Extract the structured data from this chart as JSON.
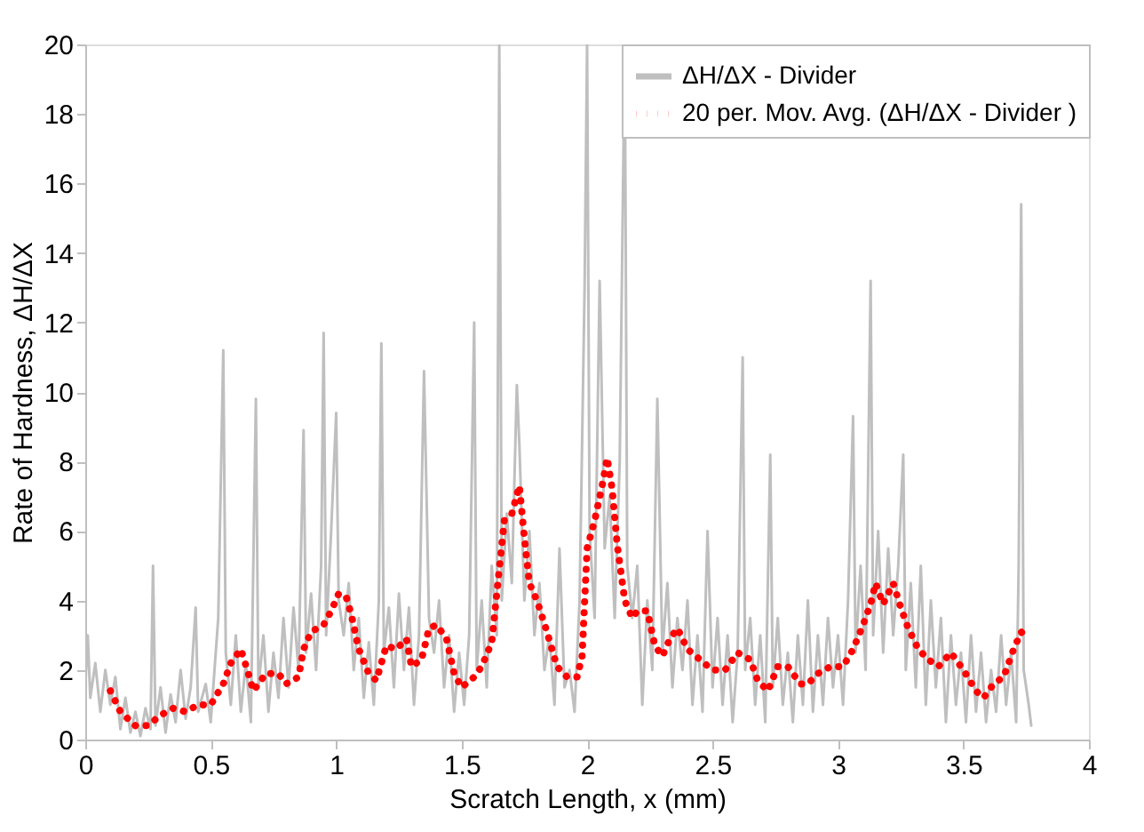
{
  "chart_data": {
    "type": "line",
    "xlabel": "Scratch Length, x (mm)",
    "ylabel": "Rate of Hardness, ΔH/ΔX",
    "xlim": [
      0,
      4
    ],
    "xticks": [
      0,
      0.5,
      1,
      1.5,
      2,
      2.5,
      3,
      3.5,
      4
    ],
    "ylim": [
      0,
      20
    ],
    "yticks": [
      0,
      2,
      4,
      6,
      8,
      10,
      12,
      14,
      16,
      18,
      20
    ],
    "grid": false,
    "legend": "top right",
    "marker": "none",
    "series": [
      {
        "name": "ΔH/ΔX - Divider",
        "color": "#bfbfbf",
        "line_style": "solid",
        "x": [
          0,
          0.01,
          0.02,
          0.04,
          0.06,
          0.08,
          0.1,
          0.12,
          0.14,
          0.16,
          0.18,
          0.2,
          0.22,
          0.24,
          0.26,
          0.27,
          0.28,
          0.3,
          0.32,
          0.34,
          0.36,
          0.38,
          0.4,
          0.42,
          0.44,
          0.45,
          0.48,
          0.5,
          0.53,
          0.55,
          0.56,
          0.58,
          0.6,
          0.62,
          0.64,
          0.66,
          0.68,
          0.69,
          0.71,
          0.73,
          0.75,
          0.77,
          0.79,
          0.81,
          0.83,
          0.85,
          0.87,
          0.88,
          0.9,
          0.92,
          0.94,
          0.95,
          0.96,
          0.98,
          1.0,
          1.01,
          1.03,
          1.05,
          1.07,
          1.09,
          1.11,
          1.13,
          1.15,
          1.17,
          1.18,
          1.19,
          1.21,
          1.23,
          1.25,
          1.27,
          1.29,
          1.31,
          1.33,
          1.35,
          1.37,
          1.39,
          1.41,
          1.43,
          1.45,
          1.47,
          1.49,
          1.51,
          1.53,
          1.55,
          1.56,
          1.58,
          1.6,
          1.62,
          1.64,
          1.65,
          1.66,
          1.68,
          1.7,
          1.72,
          1.73,
          1.75,
          1.77,
          1.79,
          1.81,
          1.83,
          1.85,
          1.87,
          1.89,
          1.91,
          1.93,
          1.95,
          1.97,
          1.99,
          2.0,
          2.01,
          2.03,
          2.05,
          2.07,
          2.09,
          2.11,
          2.13,
          2.15,
          2.16,
          2.18,
          2.2,
          2.22,
          2.24,
          2.26,
          2.28,
          2.3,
          2.32,
          2.34,
          2.36,
          2.38,
          2.4,
          2.42,
          2.44,
          2.46,
          2.48,
          2.5,
          2.52,
          2.54,
          2.56,
          2.58,
          2.6,
          2.62,
          2.63,
          2.65,
          2.67,
          2.69,
          2.71,
          2.73,
          2.74,
          2.76,
          2.78,
          2.8,
          2.82,
          2.84,
          2.86,
          2.88,
          2.9,
          2.92,
          2.94,
          2.96,
          2.98,
          3.0,
          3.02,
          3.04,
          3.06,
          3.07,
          3.09,
          3.11,
          3.13,
          3.14,
          3.16,
          3.18,
          3.2,
          3.22,
          3.24,
          3.26,
          3.27,
          3.29,
          3.31,
          3.33,
          3.35,
          3.37,
          3.39,
          3.41,
          3.43,
          3.45,
          3.47,
          3.49,
          3.51,
          3.53,
          3.55,
          3.57,
          3.59,
          3.61,
          3.63,
          3.65,
          3.67,
          3.69,
          3.71,
          3.72,
          3.73,
          3.74,
          3.76,
          3.77
        ],
        "values": [
          1.5,
          3.0,
          1.2,
          2.2,
          0.8,
          2.0,
          1.0,
          1.8,
          0.3,
          1.2,
          0.2,
          0.8,
          0.1,
          0.9,
          0.3,
          5.0,
          0.4,
          1.5,
          0.2,
          1.3,
          0.5,
          2.0,
          0.6,
          1.5,
          3.8,
          0.8,
          1.6,
          0.5,
          3.5,
          11.2,
          2.5,
          1.0,
          3.0,
          0.8,
          2.2,
          0.5,
          9.8,
          1.5,
          3.0,
          0.8,
          2.5,
          1.2,
          3.5,
          1.5,
          3.8,
          2.0,
          8.9,
          2.5,
          4.2,
          2.0,
          5.0,
          11.7,
          3.0,
          6.0,
          9.4,
          4.0,
          3.0,
          4.5,
          2.0,
          3.5,
          1.2,
          2.8,
          1.0,
          4.0,
          11.4,
          2.5,
          3.8,
          1.5,
          4.2,
          2.0,
          3.8,
          1.0,
          3.0,
          10.6,
          3.5,
          2.5,
          4.0,
          1.5,
          3.0,
          0.8,
          2.5,
          1.0,
          3.0,
          12.0,
          2.0,
          4.0,
          1.5,
          5.0,
          3.0,
          20,
          4.0,
          6.5,
          4.5,
          10.2,
          8.5,
          4.0,
          6.0,
          3.0,
          4.5,
          2.0,
          3.0,
          1.0,
          5.5,
          1.5,
          2.0,
          0.8,
          4.0,
          13.0,
          20,
          6.0,
          3.5,
          13.2,
          5.5,
          7.0,
          3.5,
          8.0,
          20,
          5.0,
          3.5,
          5.0,
          1.0,
          4.0,
          2.0,
          9.8,
          2.5,
          4.5,
          1.5,
          3.5,
          2.0,
          4.0,
          1.0,
          3.0,
          0.8,
          6.0,
          1.5,
          3.5,
          1.0,
          3.0,
          0.5,
          2.5,
          11.0,
          2.0,
          3.5,
          1.0,
          3.0,
          0.5,
          8.2,
          1.5,
          3.5,
          1.0,
          2.5,
          0.5,
          3.0,
          1.0,
          4.0,
          0.8,
          3.0,
          1.0,
          3.5,
          1.5,
          3.0,
          1.0,
          4.0,
          9.3,
          2.5,
          5.0,
          2.0,
          13.2,
          3.0,
          6.0,
          2.5,
          5.5,
          3.0,
          5.0,
          8.2,
          2.0,
          4.5,
          1.5,
          5.0,
          1.0,
          4.0,
          1.5,
          3.5,
          0.5,
          3.0,
          1.0,
          2.5,
          0.5,
          3.0,
          0.8,
          2.5,
          0.5,
          2.0,
          0.8,
          3.0,
          1.0,
          2.5,
          0.5,
          5.0,
          15.4,
          2.0,
          1.0,
          0.4
        ]
      },
      {
        "name": "20 per. Mov. Avg. (ΔH/ΔX - Divider )",
        "color": "#ff0000",
        "line_style": "dotted",
        "x": [
          0.1,
          0.14,
          0.2,
          0.25,
          0.3,
          0.35,
          0.4,
          0.45,
          0.5,
          0.55,
          0.58,
          0.62,
          0.65,
          0.67,
          0.72,
          0.77,
          0.8,
          0.85,
          0.87,
          0.9,
          0.95,
          0.98,
          1.01,
          1.04,
          1.06,
          1.09,
          1.13,
          1.16,
          1.2,
          1.24,
          1.28,
          1.3,
          1.34,
          1.37,
          1.4,
          1.44,
          1.47,
          1.5,
          1.55,
          1.58,
          1.62,
          1.65,
          1.67,
          1.7,
          1.73,
          1.75,
          1.77,
          1.8,
          1.84,
          1.88,
          1.92,
          1.96,
          1.98,
          2.0,
          2.03,
          2.06,
          2.08,
          2.1,
          2.12,
          2.15,
          2.18,
          2.2,
          2.24,
          2.27,
          2.3,
          2.33,
          2.36,
          2.4,
          2.45,
          2.5,
          2.55,
          2.6,
          2.65,
          2.68,
          2.72,
          2.76,
          2.8,
          2.85,
          2.88,
          2.92,
          2.97,
          3.02,
          3.06,
          3.1,
          3.13,
          3.15,
          3.18,
          3.22,
          3.25,
          3.28,
          3.32,
          3.36,
          3.4,
          3.45,
          3.5,
          3.55,
          3.58,
          3.62,
          3.66,
          3.7,
          3.73,
          3.75
        ],
        "values": [
          1.4,
          0.8,
          0.4,
          0.4,
          0.7,
          0.9,
          0.8,
          1.0,
          1.0,
          1.6,
          2.2,
          2.6,
          1.9,
          1.4,
          1.9,
          1.9,
          1.6,
          1.8,
          2.6,
          3.1,
          3.3,
          3.7,
          4.2,
          4.1,
          3.6,
          2.6,
          1.9,
          1.7,
          2.7,
          2.6,
          2.9,
          2.1,
          2.3,
          3.2,
          3.3,
          2.9,
          1.9,
          1.5,
          1.8,
          2.1,
          2.8,
          4.9,
          6.3,
          6.5,
          7.3,
          5.8,
          4.5,
          4.0,
          3.1,
          2.1,
          1.8,
          1.8,
          2.4,
          5.5,
          6.3,
          7.3,
          8.1,
          7.2,
          5.6,
          4.0,
          3.5,
          3.7,
          3.7,
          2.7,
          2.4,
          2.9,
          3.2,
          2.6,
          2.3,
          2.0,
          2.0,
          2.5,
          2.3,
          1.7,
          1.4,
          2.1,
          2.1,
          1.6,
          1.6,
          1.9,
          2.1,
          2.1,
          2.6,
          3.3,
          3.9,
          4.5,
          3.9,
          4.5,
          3.8,
          3.2,
          2.6,
          2.3,
          2.1,
          2.5,
          2.0,
          1.4,
          1.2,
          1.6,
          1.8,
          2.6,
          3.1,
          2.9
        ]
      }
    ]
  }
}
